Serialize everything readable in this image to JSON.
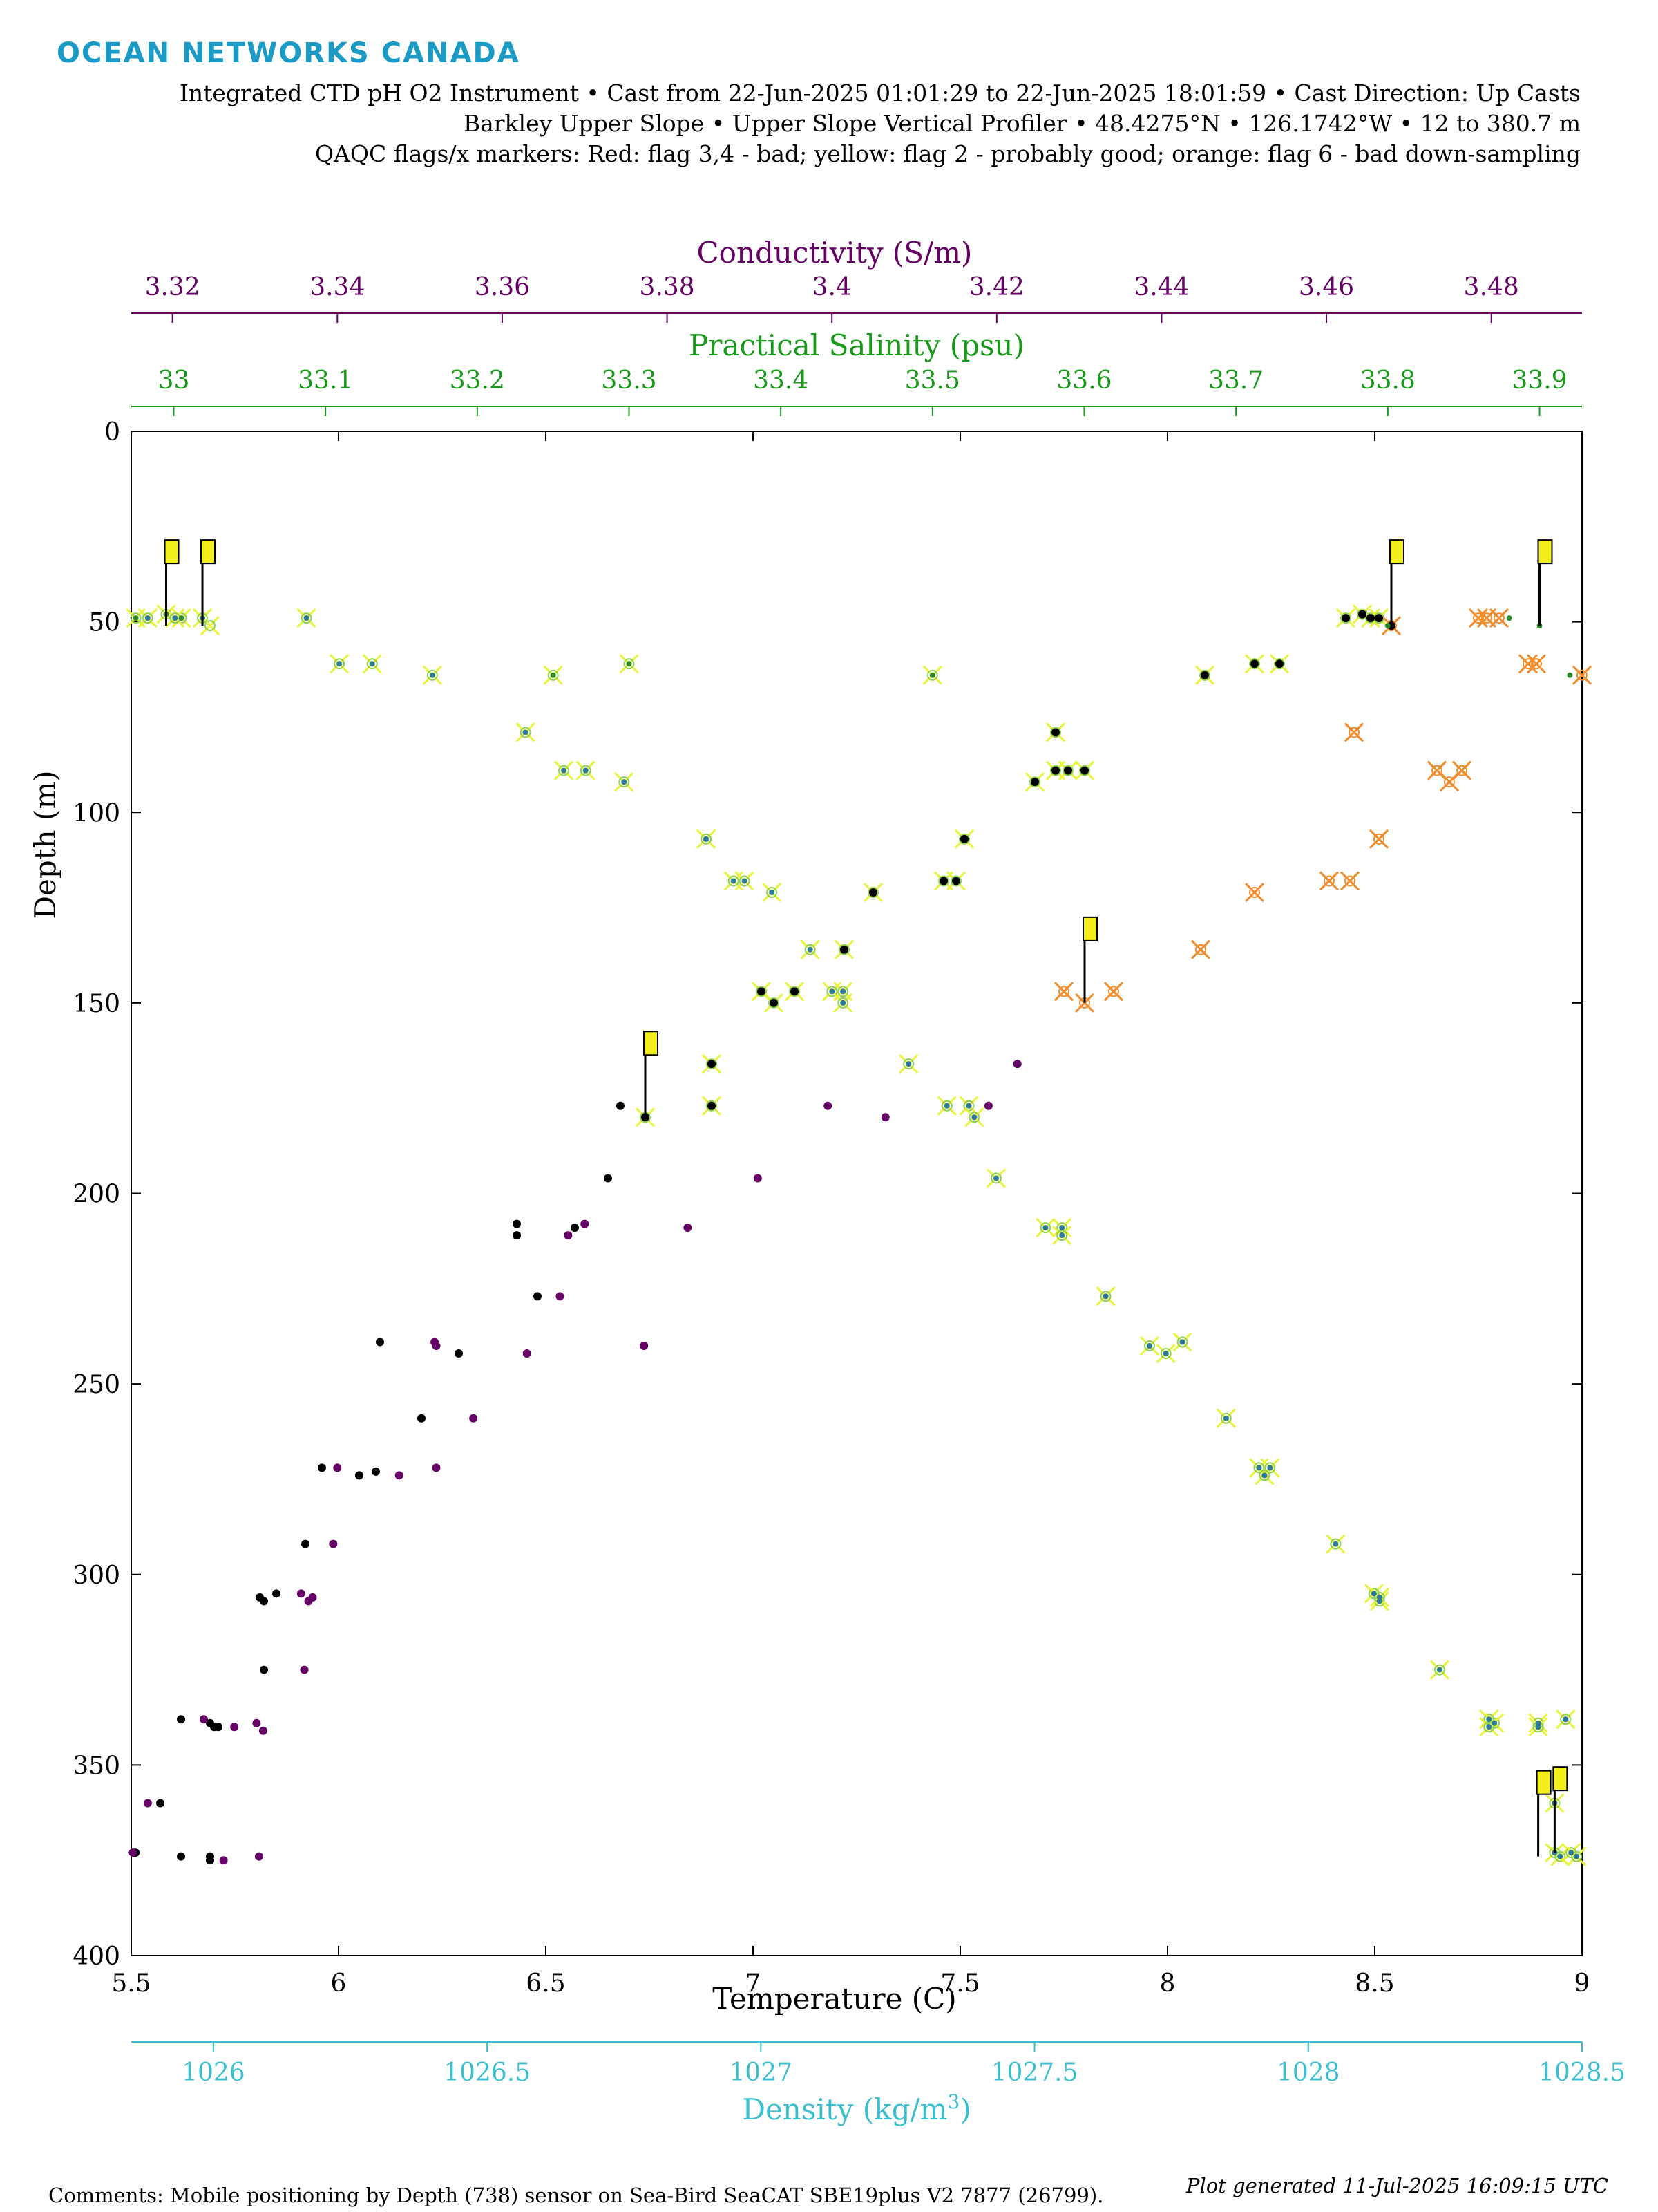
{
  "header": {
    "brand": "OCEAN NETWORKS CANADA",
    "line1": "Integrated CTD pH O2 Instrument • Cast from 22-Jun-2025 01:01:29 to 22-Jun-2025 18:01:59 • Cast Direction: Up Casts",
    "line2": "Barkley Upper Slope • Upper Slope Vertical Profiler • 48.4275°N • 126.1742°W • 12 to 380.7 m",
    "line3": "QAQC flags/x markers: Red: flag 3,4 - bad; yellow: flag 2 - probably good; orange: flag 6 - bad down-sampling"
  },
  "footer": {
    "comments": "Comments: Mobile positioning by Depth (738) sensor on Sea-Bird SeaCAT SBE19plus V2 7877 (26799).",
    "generated": "Plot generated 11-Jul-2025 16:09:15 UTC"
  },
  "colors": {
    "temperature": "#000000",
    "conductivity": "#660066",
    "salinity": "#1a9a1a",
    "density": "#3bbfd0",
    "brand": "#1a9ac5",
    "flag_yellow": "#f2ef1c",
    "flag_x_yellow": "#e9f53a",
    "flag_orange": "#f08c2c",
    "flag_red": "#e02828"
  },
  "chart_data": {
    "type": "scatter",
    "y_axis": {
      "label": "Depth (m)",
      "range": [
        0,
        400
      ],
      "ticks": [
        "0",
        "50",
        "100",
        "150",
        "200",
        "250",
        "300",
        "350",
        "400"
      ],
      "reversed": true
    },
    "x_axes": {
      "temperature": {
        "label": "Temperature (C)",
        "range": [
          5.5,
          9.0
        ],
        "ticks": [
          "5.5",
          "6",
          "6.5",
          "7",
          "7.5",
          "8",
          "8.5",
          "9"
        ],
        "position": "bottom"
      },
      "density": {
        "label": "Density (kg/m",
        "label_sup": "3",
        "label_end": ")",
        "range": [
          1025.85,
          1028.5
        ],
        "ticks": [
          "1026",
          "1026.5",
          "1027",
          "1027.5",
          "1028",
          "1028.5"
        ],
        "position": "bottom-offset"
      },
      "conductivity": {
        "label": "Conductivity (S/m)",
        "range": [
          3.315,
          3.491
        ],
        "ticks": [
          "3.32",
          "3.34",
          "3.36",
          "3.38",
          "3.4",
          "3.42",
          "3.44",
          "3.46",
          "3.48"
        ],
        "position": "top-outer"
      },
      "salinity": {
        "label": "Practical Salinity (psu)",
        "range": [
          32.972,
          33.928
        ],
        "ticks": [
          "33",
          "33.1",
          "33.2",
          "33.3",
          "33.4",
          "33.5",
          "33.6",
          "33.7",
          "33.8",
          "33.9"
        ],
        "position": "top-inner"
      }
    },
    "grid": false,
    "series": [
      {
        "key": "temperature",
        "axis": "temperature",
        "points": [
          [
            5.51,
            373
          ],
          [
            5.62,
            374
          ],
          [
            5.69,
            375
          ],
          [
            5.69,
            374
          ],
          [
            5.57,
            360
          ],
          [
            5.62,
            338
          ],
          [
            5.69,
            339
          ],
          [
            5.7,
            340
          ],
          [
            5.71,
            340
          ],
          [
            5.82,
            325
          ],
          [
            5.81,
            306
          ],
          [
            5.82,
            307
          ],
          [
            5.85,
            305
          ],
          [
            5.92,
            292
          ],
          [
            5.96,
            272
          ],
          [
            6.05,
            274
          ],
          [
            6.09,
            273
          ],
          [
            6.1,
            239
          ],
          [
            6.2,
            259
          ],
          [
            6.29,
            242
          ],
          [
            6.43,
            208
          ],
          [
            6.43,
            211
          ],
          [
            6.48,
            227
          ],
          [
            6.57,
            209
          ],
          [
            6.65,
            196
          ],
          [
            6.68,
            177
          ],
          [
            6.74,
            180
          ],
          [
            6.9,
            166
          ],
          [
            6.9,
            177
          ],
          [
            7.02,
            147
          ],
          [
            7.05,
            150
          ],
          [
            7.1,
            147
          ],
          [
            7.22,
            136
          ],
          [
            7.29,
            121
          ],
          [
            7.46,
            118
          ],
          [
            7.49,
            118
          ],
          [
            7.51,
            107
          ],
          [
            7.68,
            92
          ],
          [
            7.73,
            89
          ],
          [
            7.73,
            79
          ],
          [
            7.76,
            89
          ],
          [
            7.8,
            89
          ],
          [
            8.09,
            64
          ],
          [
            8.21,
            61
          ],
          [
            8.27,
            61
          ],
          [
            8.43,
            49
          ],
          [
            8.47,
            48
          ],
          [
            8.49,
            49
          ],
          [
            8.51,
            49
          ],
          [
            8.54,
            51
          ]
        ]
      },
      {
        "key": "conductivity",
        "axis": "conductivity",
        "points": [
          [
            3.3152,
            373
          ],
          [
            3.317,
            360
          ],
          [
            3.3238,
            338
          ],
          [
            3.3275,
            340
          ],
          [
            3.3262,
            375
          ],
          [
            3.3305,
            374
          ],
          [
            3.3302,
            339
          ],
          [
            3.331,
            341
          ],
          [
            3.336,
            325
          ],
          [
            3.3356,
            305
          ],
          [
            3.3365,
            307
          ],
          [
            3.337,
            306
          ],
          [
            3.3395,
            292
          ],
          [
            3.34,
            272
          ],
          [
            3.3475,
            274
          ],
          [
            3.352,
            272
          ],
          [
            3.3518,
            239
          ],
          [
            3.352,
            240
          ],
          [
            3.3565,
            259
          ],
          [
            3.363,
            242
          ],
          [
            3.367,
            227
          ],
          [
            3.368,
            211
          ],
          [
            3.37,
            208
          ],
          [
            3.3772,
            240
          ],
          [
            3.3825,
            209
          ],
          [
            3.391,
            196
          ],
          [
            3.3995,
            177
          ],
          [
            3.4065,
            180
          ],
          [
            3.419,
            177
          ],
          [
            3.4225,
            166
          ]
        ]
      },
      {
        "key": "salinity",
        "axis": "salinity",
        "points": [
          [
            32.975,
            49
          ],
          [
            32.995,
            48
          ],
          [
            33.005,
            49
          ],
          [
            33.25,
            64
          ],
          [
            33.3,
            61
          ],
          [
            33.5,
            64
          ],
          [
            33.8,
            51
          ],
          [
            33.88,
            49
          ],
          [
            33.9,
            51
          ],
          [
            33.92,
            64
          ]
        ]
      },
      {
        "key": "density",
        "axis": "density",
        "points": [
          [
            1025.88,
            49
          ],
          [
            1025.93,
            49
          ],
          [
            1025.98,
            49
          ],
          [
            1026.17,
            49
          ],
          [
            1026.23,
            61
          ],
          [
            1026.29,
            61
          ],
          [
            1026.4,
            64
          ],
          [
            1026.57,
            79
          ],
          [
            1026.64,
            89
          ],
          [
            1026.68,
            89
          ],
          [
            1026.75,
            92
          ],
          [
            1026.9,
            107
          ],
          [
            1026.95,
            118
          ],
          [
            1026.97,
            118
          ],
          [
            1027.02,
            121
          ],
          [
            1027.09,
            136
          ],
          [
            1027.13,
            147
          ],
          [
            1027.15,
            147
          ],
          [
            1027.15,
            150
          ],
          [
            1027.27,
            166
          ],
          [
            1027.34,
            177
          ],
          [
            1027.38,
            177
          ],
          [
            1027.39,
            180
          ],
          [
            1027.43,
            196
          ],
          [
            1027.52,
            209
          ],
          [
            1027.55,
            209
          ],
          [
            1027.55,
            211
          ],
          [
            1027.63,
            227
          ],
          [
            1027.71,
            240
          ],
          [
            1027.74,
            242
          ],
          [
            1027.77,
            239
          ],
          [
            1027.85,
            259
          ],
          [
            1027.91,
            272
          ],
          [
            1027.93,
            272
          ],
          [
            1027.92,
            274
          ],
          [
            1028.05,
            292
          ],
          [
            1028.12,
            305
          ],
          [
            1028.13,
            307
          ],
          [
            1028.13,
            306
          ],
          [
            1028.24,
            325
          ],
          [
            1028.33,
            338
          ],
          [
            1028.34,
            339
          ],
          [
            1028.33,
            340
          ],
          [
            1028.42,
            339
          ],
          [
            1028.42,
            340
          ],
          [
            1028.47,
            338
          ],
          [
            1028.45,
            360
          ],
          [
            1028.45,
            373
          ],
          [
            1028.46,
            374
          ],
          [
            1028.48,
            373
          ],
          [
            1028.49,
            374
          ]
        ]
      }
    ],
    "qaqc_x_markers": [
      {
        "axis": "temperature",
        "flag": "yellow",
        "points": [
          [
            5.69,
            51
          ],
          [
            7.02,
            147
          ],
          [
            7.05,
            150
          ],
          [
            7.1,
            147
          ],
          [
            7.22,
            136
          ],
          [
            7.29,
            121
          ],
          [
            7.46,
            118
          ],
          [
            7.49,
            118
          ],
          [
            7.51,
            107
          ],
          [
            7.68,
            92
          ],
          [
            7.73,
            89
          ],
          [
            7.73,
            79
          ],
          [
            7.76,
            89
          ],
          [
            7.8,
            89
          ],
          [
            8.09,
            64
          ],
          [
            8.21,
            61
          ],
          [
            8.27,
            61
          ],
          [
            8.43,
            49
          ],
          [
            8.47,
            48
          ],
          [
            8.49,
            49
          ],
          [
            8.51,
            49
          ],
          [
            6.74,
            180
          ],
          [
            6.9,
            166
          ],
          [
            6.9,
            177
          ]
        ]
      },
      {
        "axis": "salinity",
        "flag": "yellow",
        "points": [
          [
            32.975,
            49
          ],
          [
            32.995,
            48
          ],
          [
            33.005,
            49
          ],
          [
            33.25,
            64
          ],
          [
            33.3,
            61
          ],
          [
            33.5,
            64
          ]
        ]
      },
      {
        "axis": "density",
        "flag": "yellow",
        "points": [
          [
            1025.88,
            49
          ],
          [
            1025.93,
            49
          ],
          [
            1025.98,
            49
          ],
          [
            1026.17,
            49
          ],
          [
            1026.23,
            61
          ],
          [
            1026.29,
            61
          ],
          [
            1026.4,
            64
          ],
          [
            1026.57,
            79
          ],
          [
            1026.64,
            89
          ],
          [
            1026.68,
            89
          ],
          [
            1026.75,
            92
          ],
          [
            1026.9,
            107
          ],
          [
            1026.95,
            118
          ],
          [
            1026.97,
            118
          ],
          [
            1027.02,
            121
          ],
          [
            1027.09,
            136
          ],
          [
            1027.13,
            147
          ],
          [
            1027.15,
            147
          ],
          [
            1027.15,
            150
          ],
          [
            1027.27,
            166
          ],
          [
            1027.34,
            177
          ],
          [
            1027.38,
            177
          ],
          [
            1027.39,
            180
          ],
          [
            1027.43,
            196
          ],
          [
            1027.52,
            209
          ],
          [
            1027.55,
            209
          ],
          [
            1027.55,
            211
          ],
          [
            1027.63,
            227
          ],
          [
            1027.71,
            240
          ],
          [
            1027.74,
            242
          ],
          [
            1027.77,
            239
          ],
          [
            1027.85,
            259
          ],
          [
            1027.91,
            272
          ],
          [
            1027.93,
            272
          ],
          [
            1027.92,
            274
          ],
          [
            1028.05,
            292
          ],
          [
            1028.12,
            305
          ],
          [
            1028.13,
            307
          ],
          [
            1028.13,
            306
          ],
          [
            1028.24,
            325
          ],
          [
            1028.33,
            338
          ],
          [
            1028.34,
            339
          ],
          [
            1028.33,
            340
          ],
          [
            1028.42,
            339
          ],
          [
            1028.42,
            340
          ],
          [
            1028.47,
            338
          ],
          [
            1028.45,
            360
          ],
          [
            1028.45,
            373
          ],
          [
            1028.46,
            374
          ],
          [
            1028.48,
            373
          ],
          [
            1028.49,
            374
          ]
        ]
      },
      {
        "axis": "temperature",
        "flag": "orange",
        "points": [
          [
            8.54,
            51
          ],
          [
            8.75,
            49
          ],
          [
            8.77,
            49
          ],
          [
            8.8,
            49
          ],
          [
            8.87,
            61
          ],
          [
            8.89,
            61
          ],
          [
            9.0,
            64
          ],
          [
            8.45,
            79
          ],
          [
            8.65,
            89
          ],
          [
            8.71,
            89
          ],
          [
            8.68,
            92
          ],
          [
            8.51,
            107
          ],
          [
            8.21,
            121
          ],
          [
            8.44,
            118
          ],
          [
            8.39,
            118
          ],
          [
            8.08,
            136
          ],
          [
            7.75,
            147
          ],
          [
            7.87,
            147
          ],
          [
            7.8,
            150
          ]
        ]
      }
    ],
    "flag_markers": [
      {
        "axis": "salinity",
        "depth": 51,
        "value": 32.995
      },
      {
        "axis": "density",
        "depth": 51,
        "value": 1025.98
      },
      {
        "axis": "temperature",
        "depth": 51,
        "value": 8.54
      },
      {
        "axis": "salinity",
        "depth": 51,
        "value": 33.9
      },
      {
        "axis": "temperature",
        "depth": 150,
        "value": 7.8
      },
      {
        "axis": "temperature",
        "depth": 180,
        "value": 6.74
      },
      {
        "axis": "density",
        "depth": 374,
        "value": 1028.42
      },
      {
        "axis": "density",
        "depth": 373,
        "value": 1028.45
      }
    ]
  }
}
